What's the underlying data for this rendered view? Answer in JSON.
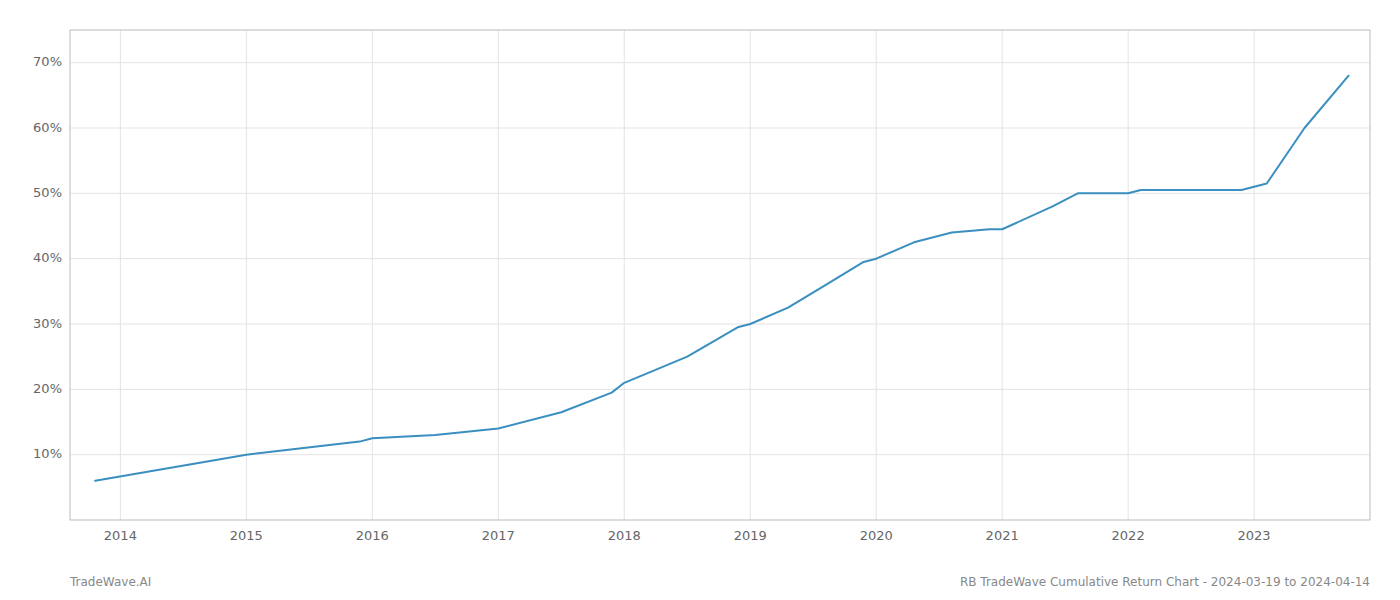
{
  "chart_data": {
    "type": "line",
    "x": [
      2013.8,
      2014.25,
      2015.0,
      2015.9,
      2016.0,
      2016.5,
      2017.0,
      2017.5,
      2017.9,
      2018.0,
      2018.5,
      2018.9,
      2019.0,
      2019.3,
      2019.6,
      2019.9,
      2020.0,
      2020.3,
      2020.6,
      2020.9,
      2021.0,
      2021.4,
      2021.6,
      2021.9,
      2022.0,
      2022.1,
      2022.5,
      2022.9,
      2023.0,
      2023.1,
      2023.4,
      2023.75
    ],
    "values": [
      6.0,
      7.5,
      10.0,
      12.0,
      12.5,
      13.0,
      14.0,
      16.5,
      19.5,
      21.0,
      25.0,
      29.5,
      30.0,
      32.5,
      36.0,
      39.5,
      40.0,
      42.5,
      44.0,
      44.5,
      44.5,
      48.0,
      50.0,
      50.0,
      50.0,
      50.5,
      50.5,
      50.5,
      51.0,
      51.5,
      60.0,
      68.0
    ],
    "color": "#3a8fc0",
    "xlim": [
      2013.6,
      2023.92
    ],
    "ylim": [
      0,
      75
    ],
    "xticks": [
      2014,
      2015,
      2016,
      2017,
      2018,
      2019,
      2020,
      2021,
      2022,
      2023
    ],
    "yticks": [
      {
        "value": 10,
        "label": "10%"
      },
      {
        "value": 20,
        "label": "20%"
      },
      {
        "value": 30,
        "label": "30%"
      },
      {
        "value": 40,
        "label": "40%"
      },
      {
        "value": 50,
        "label": "50%"
      },
      {
        "value": 60,
        "label": "60%"
      },
      {
        "value": 70,
        "label": "70%"
      }
    ],
    "grid": true,
    "annotations": [
      "TradeWave.AI",
      "RB TradeWave Cumulative Return Chart - 2024-03-19 to 2024-04-14"
    ]
  }
}
